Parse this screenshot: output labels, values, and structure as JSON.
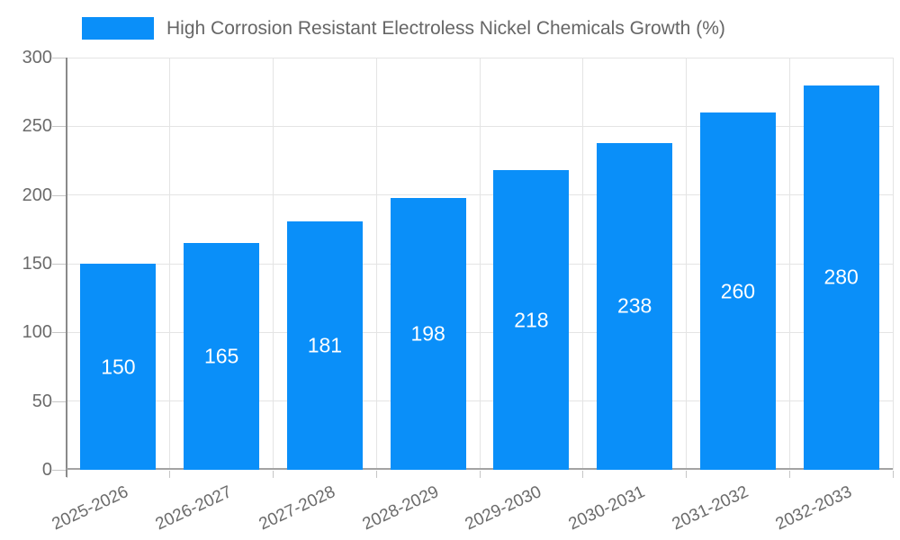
{
  "legend": {
    "label": "High Corrosion Resistant Electroless Nickel Chemicals Growth (%)"
  },
  "chart_data": {
    "type": "bar",
    "title": "High Corrosion Resistant Electroless Nickel Chemicals Growth (%)",
    "categories": [
      "2025-2026",
      "2026-2027",
      "2027-2028",
      "2028-2029",
      "2029-2030",
      "2030-2031",
      "2031-2032",
      "2032-2033"
    ],
    "values": [
      150,
      165,
      181,
      198,
      218,
      238,
      260,
      280
    ],
    "xlabel": "",
    "ylabel": "",
    "ylim": [
      0,
      300
    ],
    "yticks": [
      0,
      50,
      100,
      150,
      200,
      250,
      300
    ],
    "grid": true,
    "legend_position": "top-left",
    "value_labels": "centered-inside-bars",
    "x_label_rotation_deg": -25,
    "colors": {
      "bar": "#0a8ff9",
      "grid": "#e4e4e4",
      "axis_line": "#a3a3a3",
      "y_axis_spine": "#8a8a8a",
      "tick": "#c6c6c6",
      "axis_text": "#6b6b6b",
      "legend_text": "#666666",
      "value_label": "#ffffff",
      "background": "#ffffff"
    }
  }
}
